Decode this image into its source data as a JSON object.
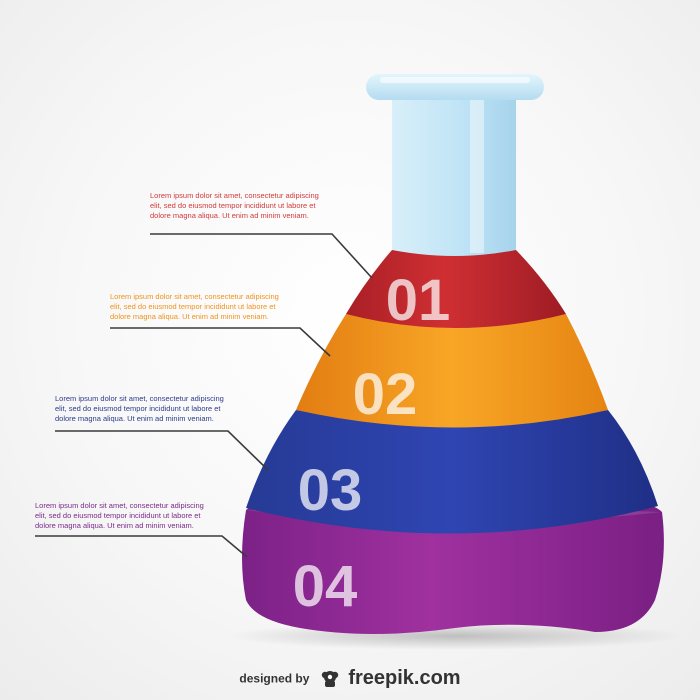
{
  "steps": [
    {
      "number": "01",
      "description": "Lorem ipsum dolor sit amet, consectetur adipiscing\nelit, sed do eiusmod tempor incididunt ut labore et\ndolore magna aliqua. Ut enim ad minim veniam.",
      "color": "#c0282f",
      "text_color": "#d23a3a"
    },
    {
      "number": "02",
      "description": "Lorem ipsum dolor sit amet, consectetur adipiscing\nelit, sed do eiusmod tempor incididunt ut labore et\ndolore magna aliqua. Ut enim ad minim veniam.",
      "color": "#f2981c",
      "text_color": "#f0921a"
    },
    {
      "number": "03",
      "description": "Lorem ipsum dolor sit amet, consectetur adipiscing\nelit, sed do eiusmod tempor incididunt ut labore et\ndolore magna aliqua. Ut enim ad minim veniam.",
      "color": "#2c3e9c",
      "text_color": "#2e3b8a"
    },
    {
      "number": "04",
      "description": "Lorem ipsum dolor sit amet, consectetur adipiscing\nelit, sed do eiusmod tempor incididunt ut labore et\ndolore magna aliqua. Ut enim ad minim veniam.",
      "color": "#8e2a96",
      "text_color": "#7a2a8a"
    }
  ],
  "neck_color": "#c7e8f8",
  "credit": {
    "designed_by": "designed by",
    "brand": "freepik.com",
    "logo_icon": "freepik-logo-icon"
  }
}
